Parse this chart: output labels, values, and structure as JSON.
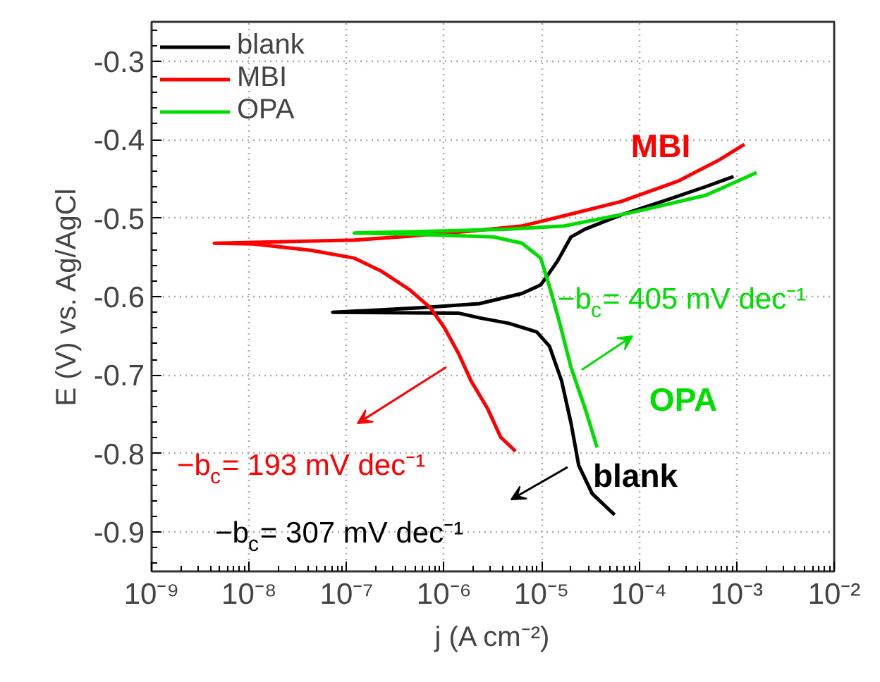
{
  "chart_data": {
    "type": "line",
    "xlabel": "j (A cm⁻²)",
    "ylabel": "E (V) vs. Ag/AgCl",
    "log": "x",
    "grid": true,
    "legend": "top left",
    "line_style": "solid",
    "marker": "none",
    "xlim": [
      1e-09,
      0.01
    ],
    "xticks": [
      {
        "value": 1e-09,
        "label": "10⁻⁹"
      },
      {
        "value": 1e-08,
        "label": "10⁻⁸"
      },
      {
        "value": 1e-07,
        "label": "10⁻⁷"
      },
      {
        "value": 1e-06,
        "label": "10⁻⁶"
      },
      {
        "value": 1e-05,
        "label": "10⁻⁵"
      },
      {
        "value": 0.0001,
        "label": "10⁻⁴"
      },
      {
        "value": 0.001,
        "label": "10⁻³"
      },
      {
        "value": 0.01,
        "label": "10⁻²"
      }
    ],
    "ylim": [
      -0.95,
      -0.25
    ],
    "yticks": [
      -0.9,
      -0.8,
      -0.7,
      -0.6,
      -0.5,
      -0.4,
      -0.3
    ],
    "series": [
      {
        "name": "blank",
        "color": "#000000",
        "x": [
          5.6e-05,
          3.3e-05,
          2.4e-05,
          2e-05,
          1.6e-05,
          1.2e-05,
          8.9e-06,
          4.6e-06,
          2.3e-06,
          1.4e-06,
          7.2e-08,
          6.2e-07,
          2.3e-06,
          6.3e-06,
          9.8e-06,
          1.15e-05,
          1.45e-05,
          2e-05,
          2.8e-05,
          6.5e-05,
          0.00018,
          0.00048,
          0.00093
        ],
        "values": [
          -0.878,
          -0.851,
          -0.815,
          -0.761,
          -0.707,
          -0.663,
          -0.645,
          -0.634,
          -0.627,
          -0.621,
          -0.62,
          -0.614,
          -0.609,
          -0.596,
          -0.585,
          -0.573,
          -0.555,
          -0.524,
          -0.514,
          -0.496,
          -0.478,
          -0.46,
          -0.447
        ]
      },
      {
        "name": "MBI",
        "color": "#ff0000",
        "x": [
          5.4e-06,
          3.8e-06,
          2.8e-06,
          1.9e-06,
          1.4e-06,
          1e-06,
          7.2e-07,
          4.4e-07,
          2.3e-07,
          1.2e-07,
          4.3e-08,
          1.1e-08,
          4.4e-09,
          1.2e-07,
          4.4e-07,
          1.7e-06,
          6.3e-06,
          1.7e-05,
          6.5e-05,
          0.00025,
          0.00066,
          0.0012
        ],
        "values": [
          -0.797,
          -0.779,
          -0.743,
          -0.708,
          -0.672,
          -0.639,
          -0.614,
          -0.591,
          -0.568,
          -0.551,
          -0.541,
          -0.533,
          -0.532,
          -0.528,
          -0.523,
          -0.517,
          -0.51,
          -0.497,
          -0.479,
          -0.453,
          -0.426,
          -0.406
        ]
      },
      {
        "name": "OPA",
        "color": "#00dd00",
        "x": [
          3.7e-05,
          2.8e-05,
          2e-05,
          1.55e-05,
          1.23e-05,
          9.8e-06,
          6.3e-06,
          3.2e-06,
          6.2e-07,
          1.2e-07,
          6.2e-07,
          4.6e-06,
          1.7e-05,
          9.1e-05,
          0.00048,
          0.0016
        ],
        "values": [
          -0.792,
          -0.743,
          -0.69,
          -0.636,
          -0.591,
          -0.551,
          -0.532,
          -0.524,
          -0.521,
          -0.519,
          -0.517,
          -0.514,
          -0.51,
          -0.492,
          -0.471,
          -0.442
        ]
      }
    ],
    "annotations": [
      "MBI",
      "OPA",
      "blank",
      "−b$_{c}$= 405 mV dec⁻¹",
      "−b$_{c}$= 193 mV dec⁻¹",
      "−b$_{c}$= 307 mV dec⁻¹"
    ]
  }
}
